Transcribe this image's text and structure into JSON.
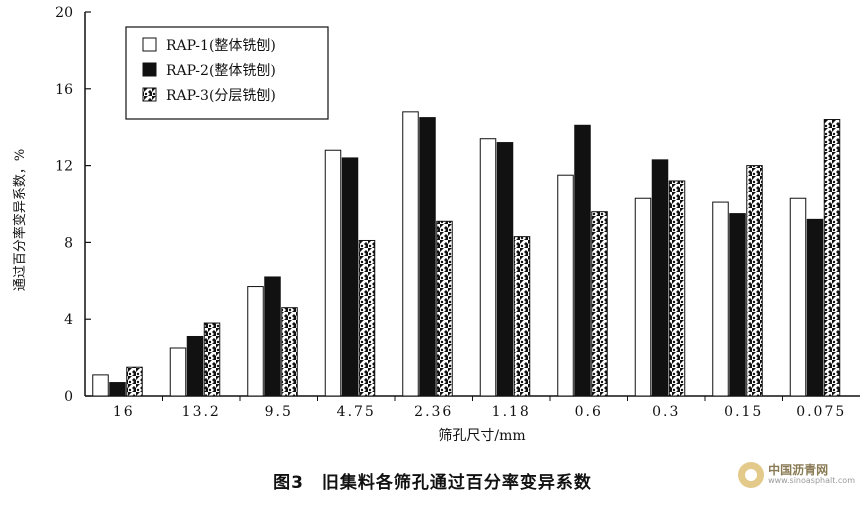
{
  "chart_data": {
    "type": "bar",
    "title": "",
    "xlabel": "筛孔尺寸/mm",
    "ylabel": "通过百分率变异系数，%",
    "ylim": [
      0,
      20
    ],
    "yticks": [
      0,
      4,
      8,
      12,
      16,
      20
    ],
    "categories": [
      "16",
      "13.2",
      "9.5",
      "4.75",
      "2.36",
      "1.18",
      "0.6",
      "0.3",
      "0.15",
      "0.075"
    ],
    "series": [
      {
        "name": "RAP-1(整体铣刨)",
        "style": "white",
        "values": [
          1.1,
          2.5,
          5.7,
          12.8,
          14.8,
          13.4,
          11.5,
          10.3,
          10.1,
          10.3
        ]
      },
      {
        "name": "RAP-2(整体铣刨)",
        "style": "black",
        "values": [
          0.7,
          3.1,
          6.2,
          12.4,
          14.5,
          13.2,
          14.1,
          12.3,
          9.5,
          9.2
        ]
      },
      {
        "name": "RAP-3(分层铣刨)",
        "style": "pattern",
        "values": [
          1.5,
          3.8,
          4.6,
          8.1,
          9.1,
          8.3,
          9.6,
          11.2,
          12.0,
          14.4
        ]
      }
    ],
    "legend_position": "top-left",
    "grid": false,
    "colors": {
      "axis": "#111111",
      "fill_white": "#ffffff",
      "fill_black": "#111111"
    }
  },
  "caption": "图3　旧集料各筛孔通过百分率变异系数",
  "watermark": {
    "name": "中国沥青网",
    "url": "www.sinoasphalt.com"
  }
}
